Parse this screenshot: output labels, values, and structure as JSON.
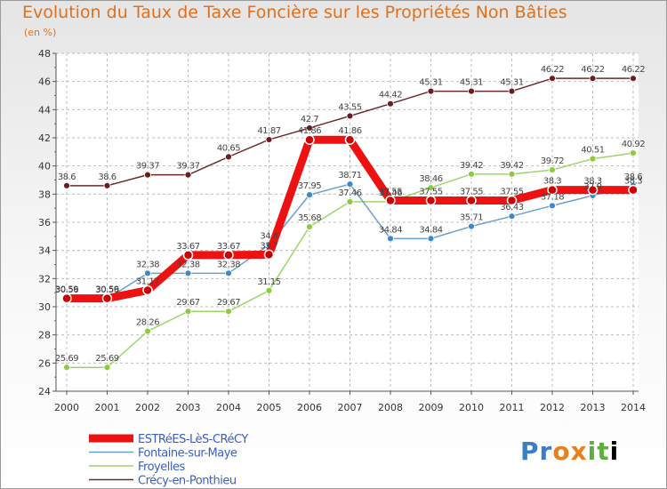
{
  "title": "Evolution du Taux de Taxe Foncière sur les Propriétés Non Bâties",
  "subtitle": "(en %)",
  "logo": [
    "P",
    "r",
    "o",
    "x",
    "i",
    "t",
    "i"
  ],
  "chart_data": {
    "type": "line",
    "categories": [
      "2000",
      "2001",
      "2002",
      "2003",
      "2004",
      "2005",
      "2006",
      "2007",
      "2008",
      "2009",
      "2010",
      "2011",
      "2012",
      "2013",
      "2014"
    ],
    "ylim": [
      24,
      48
    ],
    "yticks": [
      24,
      26,
      28,
      30,
      32,
      34,
      36,
      38,
      40,
      42,
      44,
      46,
      48
    ],
    "series": [
      {
        "name": "Crécy-en-Ponthieu",
        "color": "#6b2a2a",
        "marker": "#6b1e1e",
        "width": 1.5,
        "values": [
          38.6,
          38.6,
          39.37,
          39.37,
          40.65,
          41.87,
          42.7,
          43.55,
          44.42,
          45.31,
          45.31,
          45.31,
          46.22,
          46.22,
          46.22
        ],
        "labels": [
          "38.6",
          "38.6",
          "39.37",
          "39.37",
          "40.65",
          "41.87",
          "42.7",
          "43.55",
          "44.42",
          "45.31",
          "45.31",
          "45.31",
          "46.22",
          "46.22",
          "46.22"
        ]
      },
      {
        "name": "Froyelles",
        "color": "#9dd56c",
        "marker": "#8ccc3c",
        "width": 1.5,
        "values": [
          25.69,
          25.69,
          28.26,
          29.67,
          29.67,
          31.15,
          35.68,
          37.46,
          37.46,
          38.46,
          39.42,
          39.42,
          39.72,
          40.51,
          40.92
        ],
        "labels": [
          "25.69",
          "25.69",
          "28.26",
          "29.67",
          "29.67",
          "31.15",
          "35.68",
          "37.46",
          "37.46",
          "38.46",
          "39.42",
          "39.42",
          "39.72",
          "40.51",
          "40.92"
        ]
      },
      {
        "name": "Fontaine-sur-Maye",
        "color": "#6b9fcf",
        "marker": "#3d88cc",
        "width": 1.5,
        "values": [
          30.56,
          30.56,
          32.38,
          32.38,
          32.38,
          34.4,
          37.95,
          38.71,
          34.84,
          34.84,
          35.71,
          36.43,
          37.18,
          37.9,
          38.6
        ],
        "labels": [
          "30.56",
          "30.56",
          "32.38",
          "32.38",
          "32.38",
          "34.4",
          "37.95",
          "38.71",
          "34.84",
          "34.84",
          "35.71",
          "36.43",
          "37.18",
          "37.9",
          "38.6"
        ]
      },
      {
        "name": "ESTRéES-LèS-CRéCY",
        "color": "#ee1111",
        "marker": "#cc0000",
        "width": 9,
        "values": [
          30.59,
          30.59,
          31.17,
          33.67,
          33.67,
          33.7,
          41.86,
          41.86,
          37.55,
          37.55,
          37.55,
          37.55,
          38.3,
          38.3,
          38.3
        ],
        "labels": [
          "30.59",
          "30.59",
          "31.17",
          "33.67",
          "33.67",
          "33.7",
          "41.86",
          "41.86",
          "37.55",
          "37.55",
          "37.55",
          "37.55",
          "38.3",
          "38.3",
          "38.3"
        ]
      }
    ],
    "legend": [
      "ESTRéES-LèS-CRéCY",
      "Fontaine-sur-Maye",
      "Froyelles",
      "Crécy-en-Ponthieu"
    ],
    "legend_colors": [
      "#ee1111",
      "#6b9fcf",
      "#9dd56c",
      "#6b2a2a"
    ]
  }
}
